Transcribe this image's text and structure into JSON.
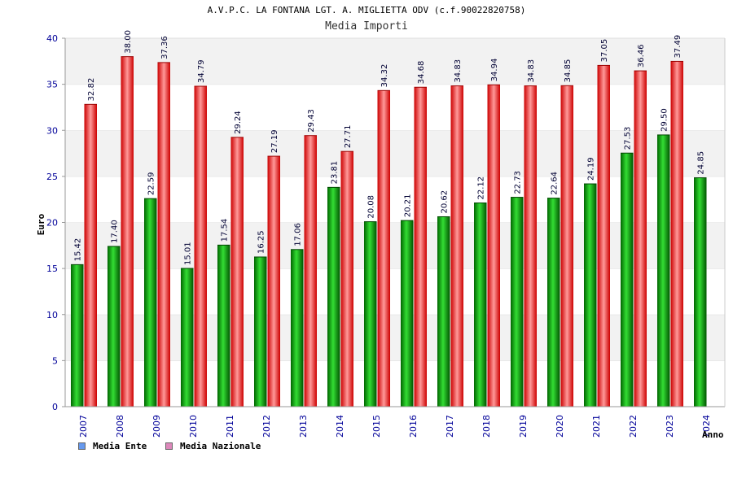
{
  "chart_data": {
    "type": "bar",
    "title": "A.V.P.C. LA FONTANA LGT. A. MIGLIETTA ODV (c.f.90022820758)",
    "subtitle": "Media Importi",
    "xlabel": "Anno",
    "ylabel": "Euro",
    "ylim": [
      0,
      40
    ],
    "yticks": [
      "0",
      "5",
      "10",
      "15",
      "20",
      "25",
      "30",
      "35",
      "40"
    ],
    "categories": [
      "2007",
      "2008",
      "2009",
      "2010",
      "2011",
      "2012",
      "2013",
      "2014",
      "2015",
      "2016",
      "2017",
      "2018",
      "2019",
      "2020",
      "2021",
      "2022",
      "2023",
      "2024"
    ],
    "series": [
      {
        "name": "Media Ente",
        "color": "#00aa00",
        "legend_color": "#6699ee",
        "values": [
          15.42,
          17.4,
          22.59,
          15.01,
          17.54,
          16.25,
          17.06,
          23.81,
          20.08,
          20.21,
          20.62,
          22.12,
          22.73,
          22.64,
          24.19,
          27.53,
          29.5,
          24.85
        ],
        "labels": [
          "15.42",
          "17.40",
          "22.59",
          "15.01",
          "17.54",
          "16.25",
          "17.06",
          "23.81",
          "20.08",
          "20.21",
          "20.62",
          "22.12",
          "22.73",
          "22.64",
          "24.19",
          "27.53",
          "29.50",
          "24.85"
        ]
      },
      {
        "name": "Media Nazionale",
        "color": "#ee1111",
        "legend_color": "#dd88bb",
        "values": [
          32.82,
          38.0,
          37.36,
          34.79,
          29.24,
          27.19,
          29.43,
          27.71,
          34.32,
          34.68,
          34.83,
          34.94,
          34.83,
          34.85,
          37.05,
          36.46,
          37.49,
          null
        ],
        "labels": [
          "32.82",
          "38.00",
          "37.36",
          "34.79",
          "29.24",
          "27.19",
          "29.43",
          "27.71",
          "34.32",
          "34.68",
          "34.83",
          "34.94",
          "34.83",
          "34.85",
          "37.05",
          "36.46",
          "37.49",
          ""
        ]
      }
    ],
    "grid": true,
    "legend_position": "bottom-left"
  }
}
